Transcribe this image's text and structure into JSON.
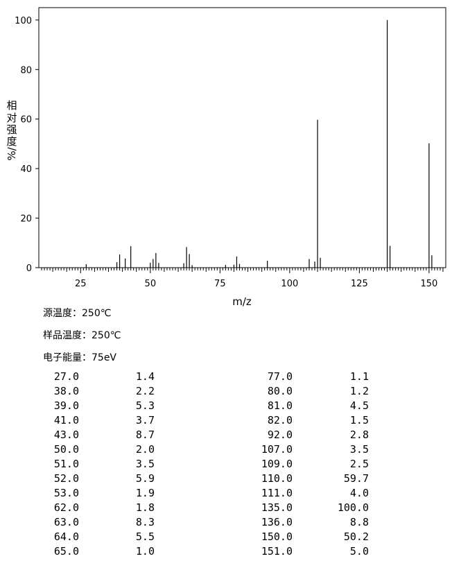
{
  "chart_data": {
    "type": "bar",
    "xlabel": "m/z",
    "ylabel_chars": [
      "相",
      "对",
      "强",
      "度",
      "%/"
    ],
    "xlim": [
      10,
      156
    ],
    "ylim": [
      0,
      105
    ],
    "xticks": [
      25,
      50,
      75,
      100,
      125,
      150
    ],
    "yticks": [
      0,
      20,
      40,
      60,
      80,
      100
    ],
    "peaks": [
      {
        "mz": 27.0,
        "intensity": 1.4
      },
      {
        "mz": 38.0,
        "intensity": 2.2
      },
      {
        "mz": 39.0,
        "intensity": 5.3
      },
      {
        "mz": 41.0,
        "intensity": 3.7
      },
      {
        "mz": 43.0,
        "intensity": 8.7
      },
      {
        "mz": 50.0,
        "intensity": 2.0
      },
      {
        "mz": 51.0,
        "intensity": 3.5
      },
      {
        "mz": 52.0,
        "intensity": 5.9
      },
      {
        "mz": 53.0,
        "intensity": 1.9
      },
      {
        "mz": 62.0,
        "intensity": 1.8
      },
      {
        "mz": 63.0,
        "intensity": 8.3
      },
      {
        "mz": 64.0,
        "intensity": 5.5
      },
      {
        "mz": 65.0,
        "intensity": 1.0
      },
      {
        "mz": 77.0,
        "intensity": 1.1
      },
      {
        "mz": 80.0,
        "intensity": 1.2
      },
      {
        "mz": 81.0,
        "intensity": 4.5
      },
      {
        "mz": 82.0,
        "intensity": 1.5
      },
      {
        "mz": 92.0,
        "intensity": 2.8
      },
      {
        "mz": 107.0,
        "intensity": 3.5
      },
      {
        "mz": 109.0,
        "intensity": 2.5
      },
      {
        "mz": 110.0,
        "intensity": 59.7
      },
      {
        "mz": 111.0,
        "intensity": 4.0
      },
      {
        "mz": 135.0,
        "intensity": 100.0
      },
      {
        "mz": 136.0,
        "intensity": 8.8
      },
      {
        "mz": 150.0,
        "intensity": 50.2
      },
      {
        "mz": 151.0,
        "intensity": 5.0
      }
    ],
    "grid": false
  },
  "conditions": {
    "source_temp": "源温度：250℃",
    "sample_temp": "样品温度：250℃",
    "electron_energy": "电子能量：75eV"
  },
  "table": {
    "left": [
      [
        "27.0",
        "1.4"
      ],
      [
        "38.0",
        "2.2"
      ],
      [
        "39.0",
        "5.3"
      ],
      [
        "41.0",
        "3.7"
      ],
      [
        "43.0",
        "8.7"
      ],
      [
        "50.0",
        "2.0"
      ],
      [
        "51.0",
        "3.5"
      ],
      [
        "52.0",
        "5.9"
      ],
      [
        "53.0",
        "1.9"
      ],
      [
        "62.0",
        "1.8"
      ],
      [
        "63.0",
        "8.3"
      ],
      [
        "64.0",
        "5.5"
      ],
      [
        "65.0",
        "1.0"
      ]
    ],
    "right": [
      [
        "77.0",
        "1.1"
      ],
      [
        "80.0",
        "1.2"
      ],
      [
        "81.0",
        "4.5"
      ],
      [
        "82.0",
        "1.5"
      ],
      [
        "92.0",
        "2.8"
      ],
      [
        "107.0",
        "3.5"
      ],
      [
        "109.0",
        "2.5"
      ],
      [
        "110.0",
        "59.7"
      ],
      [
        "111.0",
        "4.0"
      ],
      [
        "135.0",
        "100.0"
      ],
      [
        "136.0",
        "8.8"
      ],
      [
        "150.0",
        "50.2"
      ],
      [
        "151.0",
        "5.0"
      ]
    ]
  }
}
